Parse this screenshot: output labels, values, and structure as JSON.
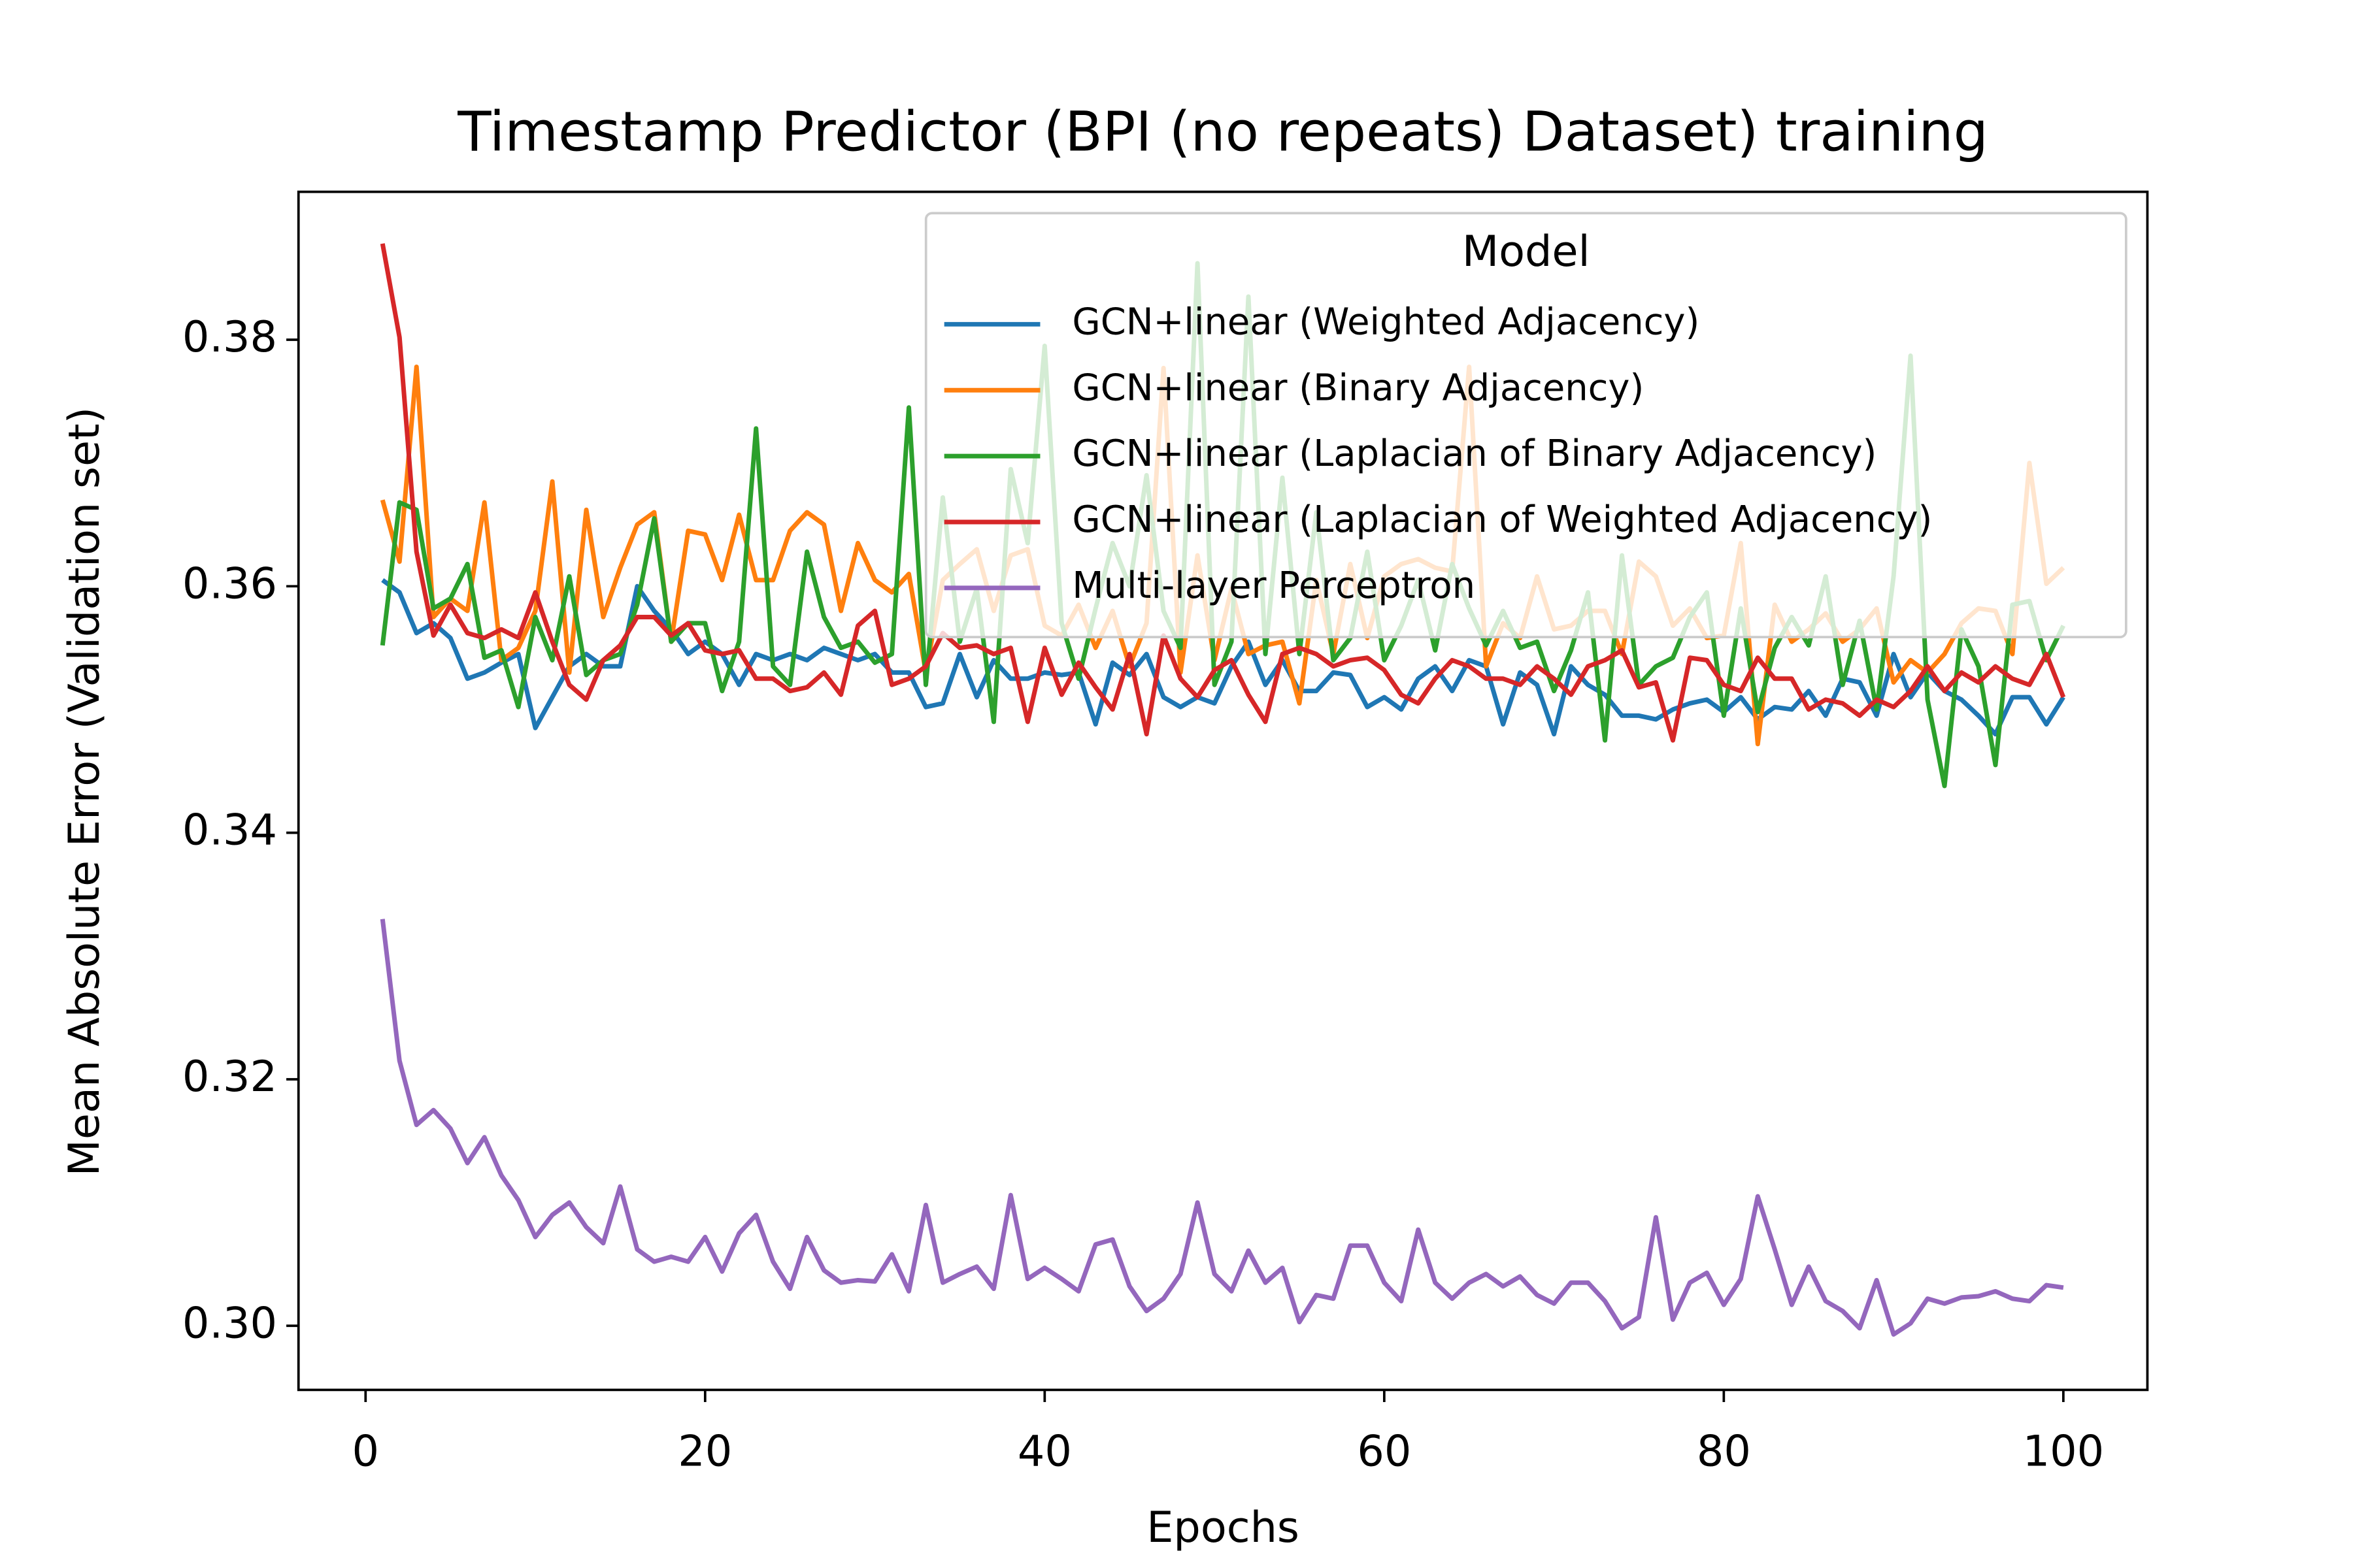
{
  "chart_data": {
    "type": "line",
    "title": "Timestamp Predictor (BPI (no repeats) Dataset) training",
    "xlabel": "Epochs",
    "ylabel": "Mean Absolute Error (Validation set)",
    "legend_title": "Model",
    "legend": "upper right",
    "x": [
      1,
      2,
      3,
      4,
      5,
      6,
      7,
      8,
      9,
      10,
      11,
      12,
      13,
      14,
      15,
      16,
      17,
      18,
      19,
      20,
      21,
      22,
      23,
      24,
      25,
      26,
      27,
      28,
      29,
      30,
      31,
      32,
      33,
      34,
      35,
      36,
      37,
      38,
      39,
      40,
      41,
      42,
      43,
      44,
      45,
      46,
      47,
      48,
      49,
      50,
      51,
      52,
      53,
      54,
      55,
      56,
      57,
      58,
      59,
      60,
      61,
      62,
      63,
      64,
      65,
      66,
      67,
      68,
      69,
      70,
      71,
      72,
      73,
      74,
      75,
      76,
      77,
      78,
      79,
      80,
      81,
      82,
      83,
      84,
      85,
      86,
      87,
      88,
      89,
      90,
      91,
      92,
      93,
      94,
      95,
      96,
      97,
      98,
      99,
      100
    ],
    "xlim": [
      -3.95,
      104.95
    ],
    "xticks": [
      0,
      20,
      40,
      60,
      80,
      100
    ],
    "ylim": [
      0.2948,
      0.392
    ],
    "yticks": [
      {
        "value": 0.3,
        "label": "0.30"
      },
      0.32,
      0.34,
      0.36,
      0.38
    ],
    "series": [
      {
        "name": "GCN+linear (Weighted Adjacency)",
        "color": "#1f77b4",
        "values": [
          0.3605,
          0.3595,
          0.3562,
          0.357,
          0.3558,
          0.3525,
          0.353,
          0.3538,
          0.3545,
          0.3485,
          0.351,
          0.3535,
          0.3545,
          0.3535,
          0.3535,
          0.36,
          0.358,
          0.3565,
          0.3545,
          0.3555,
          0.3545,
          0.352,
          0.3545,
          0.354,
          0.3545,
          0.354,
          0.355,
          0.3545,
          0.354,
          0.3545,
          0.353,
          0.353,
          0.3502,
          0.3505,
          0.3545,
          0.351,
          0.354,
          0.3525,
          0.3525,
          0.353,
          0.3528,
          0.353,
          0.3488,
          0.3538,
          0.3528,
          0.3545,
          0.351,
          0.3502,
          0.351,
          0.3505,
          0.3535,
          0.3555,
          0.352,
          0.354,
          0.3515,
          0.3515,
          0.353,
          0.3528,
          0.3502,
          0.351,
          0.35,
          0.3525,
          0.3535,
          0.3515,
          0.354,
          0.3535,
          0.3488,
          0.353,
          0.352,
          0.348,
          0.3535,
          0.352,
          0.3512,
          0.3495,
          0.3495,
          0.3492,
          0.35,
          0.3505,
          0.3508,
          0.3498,
          0.351,
          0.3492,
          0.3502,
          0.35,
          0.3515,
          0.3495,
          0.3525,
          0.3522,
          0.3495,
          0.3545,
          0.351,
          0.353,
          0.3515,
          0.3508,
          0.3495,
          0.348,
          0.351,
          0.351,
          0.3488,
          0.351
        ]
      },
      {
        "name": "GCN+linear (Binary Adjacency)",
        "color": "#ff7f0e",
        "values": [
          0.367,
          0.362,
          0.3778,
          0.3575,
          0.359,
          0.358,
          0.3668,
          0.354,
          0.355,
          0.358,
          0.3685,
          0.353,
          0.3662,
          0.3575,
          0.3615,
          0.365,
          0.366,
          0.3555,
          0.3645,
          0.3642,
          0.3605,
          0.3658,
          0.3605,
          0.3605,
          0.3645,
          0.366,
          0.365,
          0.358,
          0.3635,
          0.3605,
          0.3595,
          0.361,
          0.353,
          0.3605,
          0.3618,
          0.363,
          0.358,
          0.3625,
          0.363,
          0.3568,
          0.356,
          0.3585,
          0.355,
          0.358,
          0.3535,
          0.357,
          0.3777,
          0.353,
          0.3625,
          0.354,
          0.3598,
          0.3545,
          0.3552,
          0.3555,
          0.3505,
          0.3605,
          0.3545,
          0.3618,
          0.3558,
          0.3608,
          0.3618,
          0.3622,
          0.3615,
          0.3612,
          0.3778,
          0.3535,
          0.357,
          0.3558,
          0.3608,
          0.3565,
          0.3568,
          0.358,
          0.358,
          0.3545,
          0.362,
          0.3608,
          0.3568,
          0.3582,
          0.3558,
          0.356,
          0.3635,
          0.3472,
          0.3585,
          0.3555,
          0.3565,
          0.3578,
          0.3555,
          0.3565,
          0.3582,
          0.3522,
          0.354,
          0.353,
          0.3545,
          0.357,
          0.3582,
          0.358,
          0.3545,
          0.37,
          0.3602,
          0.3615
        ]
      },
      {
        "name": "GCN+linear (Laplacian of Binary Adjacency)",
        "color": "#2ca02c",
        "values": [
          0.3552,
          0.3668,
          0.3662,
          0.3582,
          0.359,
          0.3618,
          0.3542,
          0.3548,
          0.3502,
          0.3575,
          0.354,
          0.3608,
          0.3528,
          0.354,
          0.3545,
          0.3585,
          0.3655,
          0.3555,
          0.357,
          0.357,
          0.3515,
          0.3555,
          0.3728,
          0.3535,
          0.352,
          0.3628,
          0.3575,
          0.355,
          0.3555,
          0.3538,
          0.3545,
          0.3745,
          0.352,
          0.3672,
          0.3555,
          0.3598,
          0.349,
          0.3695,
          0.3635,
          0.3795,
          0.357,
          0.3525,
          0.3582,
          0.3635,
          0.36,
          0.369,
          0.358,
          0.355,
          0.3862,
          0.352,
          0.3555,
          0.3835,
          0.3545,
          0.3688,
          0.3545,
          0.366,
          0.354,
          0.3558,
          0.3628,
          0.354,
          0.3568,
          0.3605,
          0.3548,
          0.3618,
          0.3582,
          0.3552,
          0.358,
          0.355,
          0.3555,
          0.3515,
          0.3548,
          0.3595,
          0.3475,
          0.3625,
          0.352,
          0.3535,
          0.3542,
          0.3575,
          0.3595,
          0.3495,
          0.3582,
          0.3498,
          0.355,
          0.3575,
          0.3552,
          0.3608,
          0.352,
          0.3572,
          0.35,
          0.3608,
          0.3787,
          0.3508,
          0.3438,
          0.3565,
          0.3535,
          0.3455,
          0.3585,
          0.3588,
          0.354,
          0.3568
        ]
      },
      {
        "name": "GCN+linear (Laplacian of Weighted Adjacency)",
        "color": "#d62728",
        "values": [
          0.3878,
          0.3802,
          0.3628,
          0.356,
          0.3585,
          0.3562,
          0.3558,
          0.3565,
          0.3558,
          0.3595,
          0.3555,
          0.352,
          0.3508,
          0.354,
          0.3552,
          0.3575,
          0.3575,
          0.356,
          0.357,
          0.3548,
          0.3545,
          0.3548,
          0.3525,
          0.3525,
          0.3515,
          0.3518,
          0.353,
          0.3512,
          0.3568,
          0.358,
          0.352,
          0.3525,
          0.3535,
          0.3562,
          0.355,
          0.3552,
          0.3545,
          0.355,
          0.349,
          0.355,
          0.3512,
          0.3538,
          0.3518,
          0.35,
          0.3545,
          0.348,
          0.356,
          0.3525,
          0.351,
          0.3532,
          0.354,
          0.3512,
          0.349,
          0.3545,
          0.355,
          0.3545,
          0.3535,
          0.354,
          0.3542,
          0.3532,
          0.3512,
          0.3505,
          0.3525,
          0.354,
          0.3535,
          0.3525,
          0.3525,
          0.352,
          0.3535,
          0.3525,
          0.3512,
          0.3535,
          0.354,
          0.3548,
          0.3518,
          0.3522,
          0.3475,
          0.3542,
          0.354,
          0.352,
          0.3515,
          0.3542,
          0.3525,
          0.3525,
          0.35,
          0.3508,
          0.3505,
          0.3495,
          0.3508,
          0.3502,
          0.3515,
          0.3535,
          0.3515,
          0.353,
          0.3522,
          0.3535,
          0.3525,
          0.352,
          0.3545,
          0.351
        ]
      },
      {
        "name": "Multi-layer Perceptron",
        "color": "#9467bd",
        "values": [
          0.333,
          0.3215,
          0.3163,
          0.3175,
          0.316,
          0.3132,
          0.3153,
          0.3122,
          0.3102,
          0.3072,
          0.309,
          0.31,
          0.308,
          0.3067,
          0.3113,
          0.3062,
          0.3052,
          0.3056,
          0.3052,
          0.3072,
          0.3044,
          0.3075,
          0.309,
          0.3052,
          0.303,
          0.3072,
          0.3045,
          0.3035,
          0.3037,
          0.3036,
          0.3058,
          0.3028,
          0.3098,
          0.3035,
          0.3042,
          0.3048,
          0.303,
          0.3106,
          0.3038,
          0.3047,
          0.3038,
          0.3028,
          0.3066,
          0.307,
          0.3032,
          0.3012,
          0.3022,
          0.3042,
          0.31,
          0.3042,
          0.3028,
          0.3061,
          0.3035,
          0.3047,
          0.3003,
          0.3025,
          0.3022,
          0.3065,
          0.3065,
          0.3035,
          0.302,
          0.3078,
          0.3035,
          0.3022,
          0.3035,
          0.3042,
          0.3032,
          0.304,
          0.3025,
          0.3018,
          0.3035,
          0.3035,
          0.302,
          0.2998,
          0.3007,
          0.3088,
          0.3005,
          0.3035,
          0.3043,
          0.3017,
          0.3038,
          0.3105,
          0.3062,
          0.3017,
          0.3048,
          0.302,
          0.3012,
          0.2998,
          0.3037,
          0.2993,
          0.3002,
          0.3022,
          0.3018,
          0.3023,
          0.3024,
          0.3028,
          0.3022,
          0.302,
          0.3033,
          0.3031
        ]
      }
    ]
  }
}
